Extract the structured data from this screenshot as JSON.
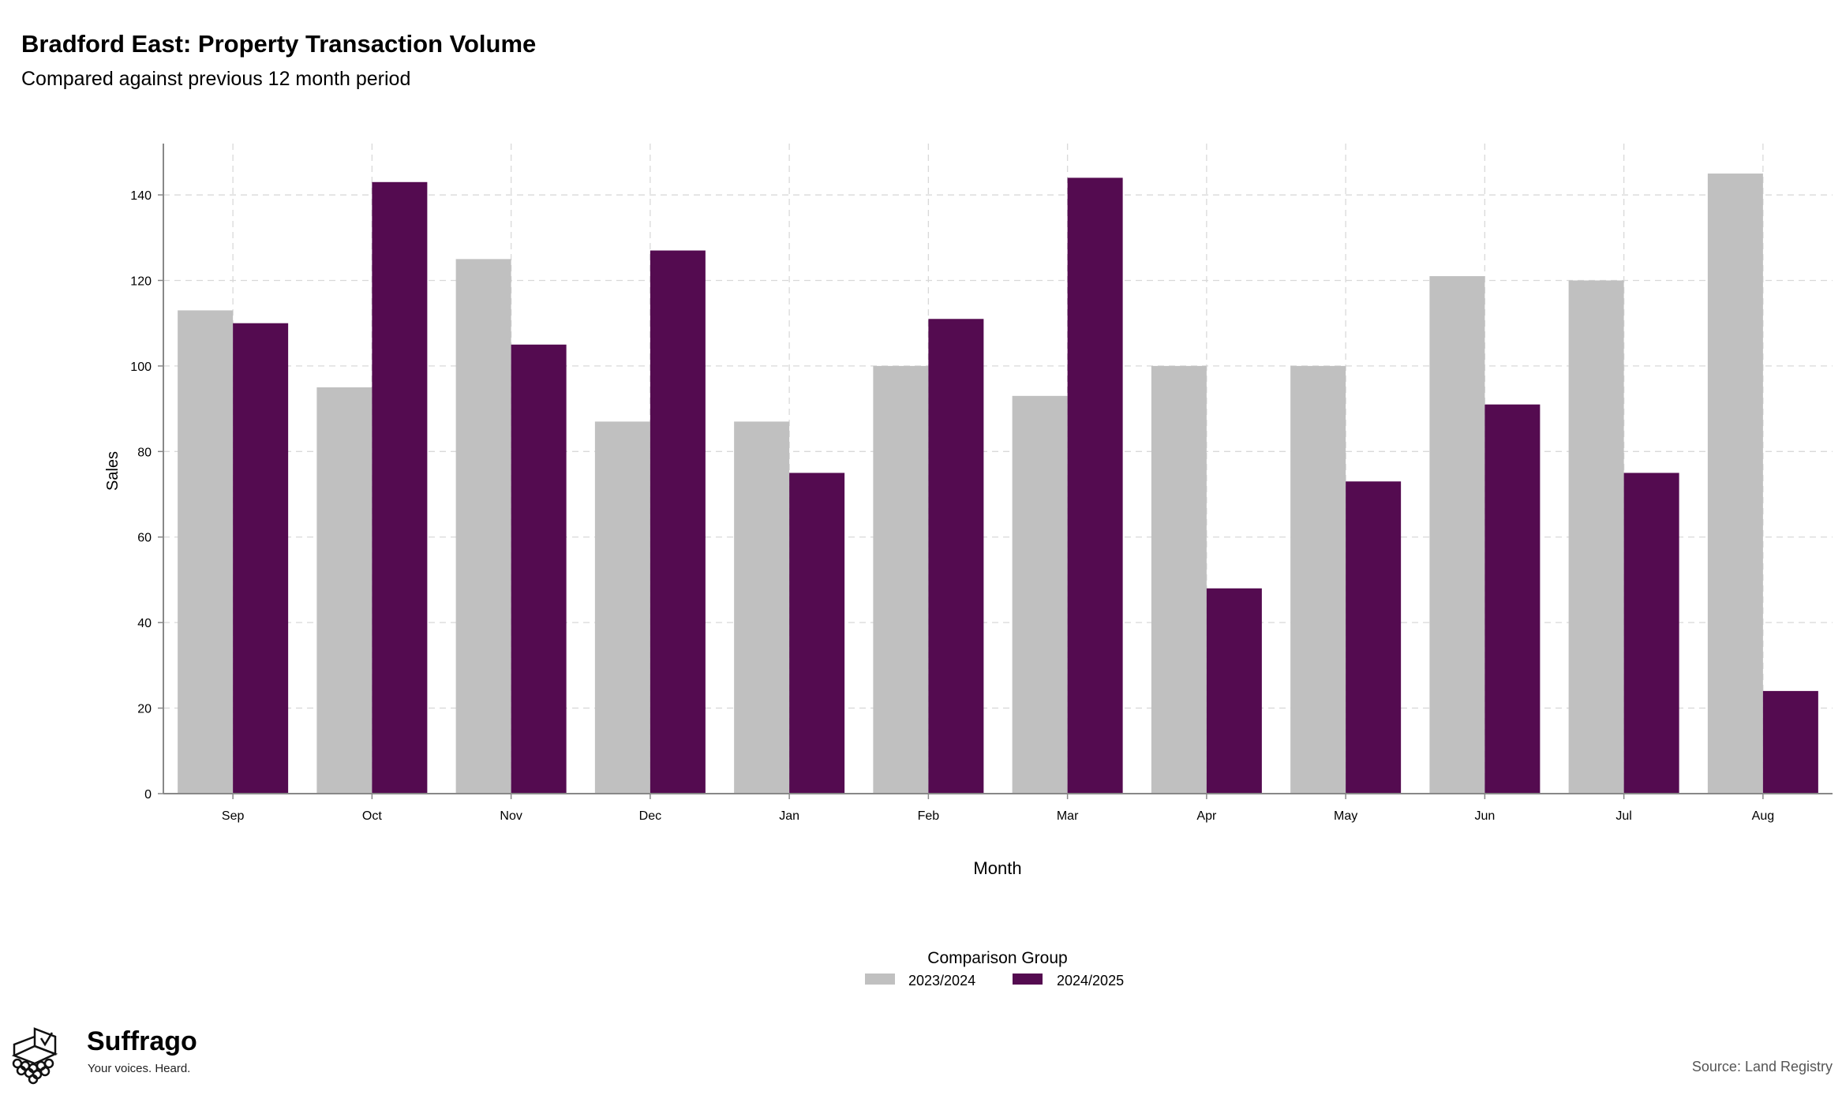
{
  "header": {
    "title": "Bradford East: Property Transaction Volume",
    "subtitle": "Compared against previous 12 month period"
  },
  "footer": {
    "source": "Source: Land Registry",
    "brand_name": "Suffrago",
    "brand_tagline": "Your voices. Heard."
  },
  "colors": {
    "series_2023_2024": "#c0c0c0",
    "series_2024_2025": "#540b50",
    "grid": "#d9d9d9",
    "axis": "#888888"
  },
  "chart_data": {
    "type": "bar",
    "xlabel": "Month",
    "ylabel": "Sales",
    "ylim": [
      0,
      152
    ],
    "yticks": [
      0,
      20,
      40,
      60,
      80,
      100,
      120,
      140
    ],
    "grid": true,
    "legend_title": "Comparison Group",
    "legend_position": "bottom-center",
    "categories": [
      "Sep",
      "Oct",
      "Nov",
      "Dec",
      "Jan",
      "Feb",
      "Mar",
      "Apr",
      "May",
      "Jun",
      "Jul",
      "Aug"
    ],
    "series": [
      {
        "name": "2023/2024",
        "color": "#c0c0c0",
        "values": [
          113,
          95,
          125,
          87,
          87,
          100,
          93,
          100,
          100,
          121,
          120,
          145
        ]
      },
      {
        "name": "2024/2025",
        "color": "#540b50",
        "values": [
          110,
          143,
          105,
          127,
          75,
          111,
          144,
          48,
          73,
          91,
          75,
          24
        ]
      }
    ]
  }
}
